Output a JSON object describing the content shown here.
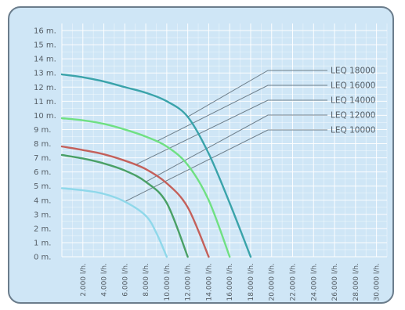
{
  "chart_data": {
    "type": "line",
    "title": "",
    "xlabel": "",
    "ylabel": "",
    "xlim": [
      0,
      31000
    ],
    "ylim": [
      0,
      16.5
    ],
    "grid": true,
    "legend_placement": "top-right",
    "x_ticks": [
      {
        "value": 2000,
        "label": "2.000 l/h."
      },
      {
        "value": 4000,
        "label": "4.000 l/h."
      },
      {
        "value": 6000,
        "label": "6.000 l/h."
      },
      {
        "value": 8000,
        "label": "8.000 l/h."
      },
      {
        "value": 10000,
        "label": "10.000 l/h."
      },
      {
        "value": 12000,
        "label": "12.000 l/h."
      },
      {
        "value": 14000,
        "label": "14.000 l/h."
      },
      {
        "value": 16000,
        "label": "16.000 l/h."
      },
      {
        "value": 18000,
        "label": "18.000 l/h."
      },
      {
        "value": 20000,
        "label": "20.000 l/h."
      },
      {
        "value": 22000,
        "label": "22.000 l/h."
      },
      {
        "value": 24000,
        "label": "24.000 l/h."
      },
      {
        "value": 26000,
        "label": "26.000 l/h."
      },
      {
        "value": 28000,
        "label": "28.000 l/h."
      },
      {
        "value": 30000,
        "label": "30.000 l/h."
      }
    ],
    "y_ticks": [
      {
        "value": 0,
        "label": "0 m."
      },
      {
        "value": 1,
        "label": "1 m."
      },
      {
        "value": 2,
        "label": "2 m."
      },
      {
        "value": 3,
        "label": "3 m."
      },
      {
        "value": 4,
        "label": "4 m."
      },
      {
        "value": 5,
        "label": "5 m."
      },
      {
        "value": 6,
        "label": "6 m."
      },
      {
        "value": 7,
        "label": "7 m."
      },
      {
        "value": 8,
        "label": "8 m."
      },
      {
        "value": 9,
        "label": "9 m."
      },
      {
        "value": 10,
        "label": "10 m."
      },
      {
        "value": 11,
        "label": "11 m."
      },
      {
        "value": 12,
        "label": "12 m."
      },
      {
        "value": 13,
        "label": "13 m."
      },
      {
        "value": 14,
        "label": "14 m."
      },
      {
        "value": 15,
        "label": "15 m."
      },
      {
        "value": 16,
        "label": "16 m."
      }
    ],
    "series": [
      {
        "name": "LEQ 18000",
        "color": "#3aa3aa",
        "x": [
          0,
          2000,
          4000,
          6000,
          8000,
          10000,
          12000,
          14000,
          16000,
          18000
        ],
        "y": [
          12.9,
          12.7,
          12.4,
          12.0,
          11.6,
          11.0,
          9.9,
          7.3,
          3.8,
          0
        ],
        "leader_at_x": 12000
      },
      {
        "name": "LEQ 16000",
        "color": "#6fe082",
        "x": [
          0,
          2000,
          4000,
          6000,
          8000,
          10000,
          12000,
          14000,
          16000
        ],
        "y": [
          9.8,
          9.65,
          9.4,
          9.0,
          8.5,
          7.8,
          6.5,
          4.0,
          0
        ],
        "leader_at_x": 9000
      },
      {
        "name": "LEQ 14000",
        "color": "#c4605a",
        "x": [
          0,
          2000,
          4000,
          6000,
          8000,
          10000,
          12000,
          14000
        ],
        "y": [
          7.8,
          7.55,
          7.25,
          6.8,
          6.2,
          5.2,
          3.5,
          0
        ],
        "leader_at_x": 7000
      },
      {
        "name": "LEQ 12000",
        "color": "#4aa066",
        "x": [
          0,
          2000,
          4000,
          6000,
          8000,
          10000,
          12000
        ],
        "y": [
          7.2,
          6.95,
          6.6,
          6.1,
          5.3,
          3.8,
          0
        ],
        "leader_at_x": 8000
      },
      {
        "name": "LEQ 10000",
        "color": "#8fd8ea",
        "x": [
          0,
          2000,
          4000,
          6000,
          8000,
          9000,
          10000
        ],
        "y": [
          4.85,
          4.7,
          4.45,
          3.9,
          2.9,
          1.7,
          0
        ],
        "leader_at_x": 6000
      }
    ]
  }
}
